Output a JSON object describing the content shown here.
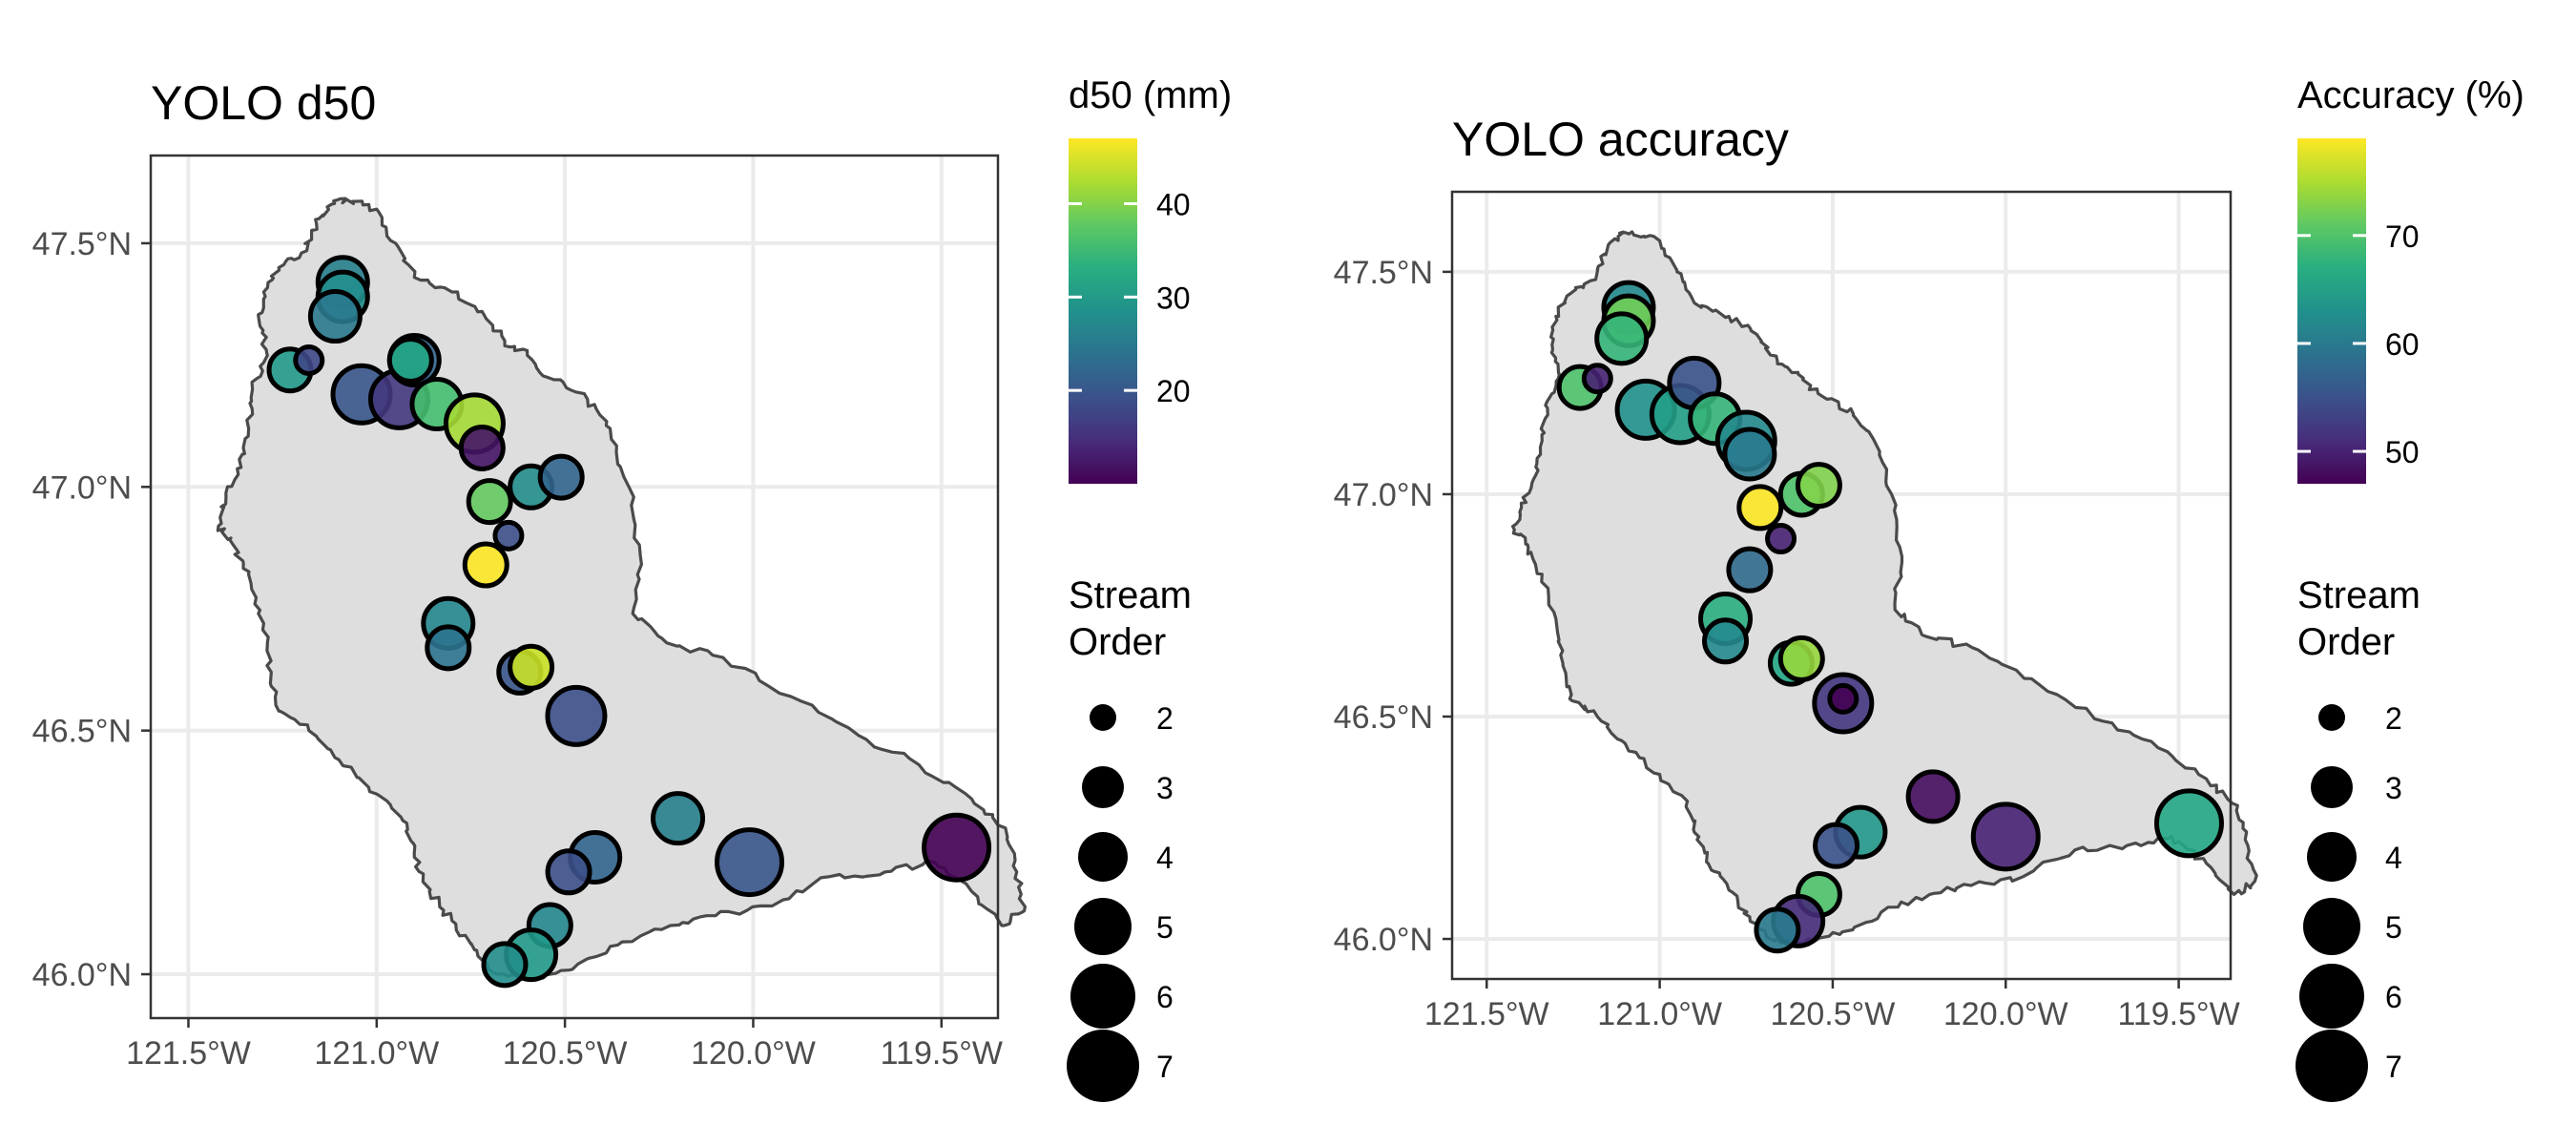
{
  "chart_data": [
    {
      "type": "scatter",
      "title": "YOLO d50",
      "x_axis": {
        "ticks": [
          -121.5,
          -121.0,
          -120.5,
          -120.0,
          -119.5
        ],
        "tick_labels": [
          "121.5°W",
          "121.0°W",
          "120.5°W",
          "120.0°W",
          "119.5°W"
        ]
      },
      "y_axis": {
        "ticks": [
          46.0,
          46.5,
          47.0,
          47.5
        ],
        "tick_labels": [
          "46.0°N",
          "46.5°N",
          "47.0°N",
          "47.5°N"
        ]
      },
      "xlim": [
        -121.55,
        -120.42
      ],
      "ylim": [
        45.91,
        47.68
      ],
      "color_legend": {
        "title": "d50 (mm)",
        "ticks": [
          20,
          30,
          40
        ],
        "range": [
          10,
          47
        ],
        "palette": "viridis"
      },
      "size_legend": {
        "title": [
          "Stream",
          "Order"
        ],
        "values": [
          2,
          3,
          4,
          5,
          6,
          7
        ]
      },
      "points": [
        {
          "lon": -121.09,
          "lat": 47.42,
          "order": 4,
          "value": 26
        },
        {
          "lon": -121.09,
          "lat": 47.39,
          "order": 4,
          "value": 28
        },
        {
          "lon": -121.11,
          "lat": 47.35,
          "order": 4,
          "value": 25
        },
        {
          "lon": -121.23,
          "lat": 47.24,
          "order": 3,
          "value": 30
        },
        {
          "lon": -121.18,
          "lat": 47.26,
          "order": 2,
          "value": 18
        },
        {
          "lon": -121.04,
          "lat": 47.19,
          "order": 5,
          "value": 20
        },
        {
          "lon": -120.94,
          "lat": 47.18,
          "order": 5,
          "value": 16
        },
        {
          "lon": -120.9,
          "lat": 47.26,
          "order": 4,
          "value": 22
        },
        {
          "lon": -120.91,
          "lat": 47.26,
          "order": 3,
          "value": 32
        },
        {
          "lon": -120.84,
          "lat": 47.17,
          "order": 4,
          "value": 36
        },
        {
          "lon": -120.74,
          "lat": 47.13,
          "order": 5,
          "value": 42
        },
        {
          "lon": -120.72,
          "lat": 47.08,
          "order": 3,
          "value": 12
        },
        {
          "lon": -120.7,
          "lat": 46.97,
          "order": 3,
          "value": 38
        },
        {
          "lon": -120.59,
          "lat": 47.0,
          "order": 3,
          "value": 28
        },
        {
          "lon": -120.51,
          "lat": 47.02,
          "order": 3,
          "value": 22
        },
        {
          "lon": -120.65,
          "lat": 46.9,
          "order": 2,
          "value": 19
        },
        {
          "lon": -120.71,
          "lat": 46.84,
          "order": 3,
          "value": 47
        },
        {
          "lon": -120.81,
          "lat": 46.72,
          "order": 4,
          "value": 27
        },
        {
          "lon": -120.81,
          "lat": 46.67,
          "order": 3,
          "value": 24
        },
        {
          "lon": -120.62,
          "lat": 46.62,
          "order": 3,
          "value": 20
        },
        {
          "lon": -120.59,
          "lat": 46.63,
          "order": 3,
          "value": 44
        },
        {
          "lon": -120.47,
          "lat": 46.53,
          "order": 5,
          "value": 19
        },
        {
          "lon": -120.2,
          "lat": 46.32,
          "order": 4,
          "value": 26
        },
        {
          "lon": -120.42,
          "lat": 46.24,
          "order": 4,
          "value": 22
        },
        {
          "lon": -120.49,
          "lat": 46.21,
          "order": 3,
          "value": 19
        },
        {
          "lon": -120.01,
          "lat": 46.23,
          "order": 6,
          "value": 20
        },
        {
          "lon": -119.46,
          "lat": 46.26,
          "order": 6,
          "value": 10
        },
        {
          "lon": -120.54,
          "lat": 46.1,
          "order": 3,
          "value": 27
        },
        {
          "lon": -120.59,
          "lat": 46.04,
          "order": 4,
          "value": 30
        },
        {
          "lon": -120.66,
          "lat": 46.02,
          "order": 3,
          "value": 28
        }
      ]
    },
    {
      "type": "scatter",
      "title": "YOLO accuracy",
      "x_axis": {
        "ticks": [
          -121.5,
          -121.0,
          -120.5,
          -120.0,
          -119.5
        ],
        "tick_labels": [
          "121.5°W",
          "121.0°W",
          "120.5°W",
          "120.0°W",
          "119.5°W"
        ]
      },
      "y_axis": {
        "ticks": [
          46.0,
          46.5,
          47.0,
          47.5
        ],
        "tick_labels": [
          "46.0°N",
          "46.5°N",
          "47.0°N",
          "47.5°N"
        ]
      },
      "color_legend": {
        "title": "Accuracy (%)",
        "ticks": [
          50,
          60,
          70
        ],
        "range": [
          47,
          79
        ],
        "palette": "viridis"
      },
      "size_legend": {
        "title": [
          "Stream",
          "Order"
        ],
        "values": [
          2,
          3,
          4,
          5,
          6,
          7
        ]
      },
      "points": [
        {
          "lon": -121.09,
          "lat": 47.42,
          "order": 4,
          "value": 62
        },
        {
          "lon": -121.09,
          "lat": 47.39,
          "order": 4,
          "value": 72
        },
        {
          "lon": -121.11,
          "lat": 47.35,
          "order": 4,
          "value": 68
        },
        {
          "lon": -121.23,
          "lat": 47.24,
          "order": 3,
          "value": 70
        },
        {
          "lon": -121.18,
          "lat": 47.26,
          "order": 2,
          "value": 50
        },
        {
          "lon": -121.04,
          "lat": 47.19,
          "order": 5,
          "value": 63
        },
        {
          "lon": -120.94,
          "lat": 47.18,
          "order": 5,
          "value": 65
        },
        {
          "lon": -120.9,
          "lat": 47.25,
          "order": 4,
          "value": 55
        },
        {
          "lon": -120.84,
          "lat": 47.17,
          "order": 4,
          "value": 68
        },
        {
          "lon": -120.75,
          "lat": 47.12,
          "order": 5,
          "value": 62
        },
        {
          "lon": -120.74,
          "lat": 47.09,
          "order": 4,
          "value": 60
        },
        {
          "lon": -120.71,
          "lat": 46.97,
          "order": 3,
          "value": 79
        },
        {
          "lon": -120.59,
          "lat": 47.0,
          "order": 3,
          "value": 70
        },
        {
          "lon": -120.54,
          "lat": 47.02,
          "order": 3,
          "value": 73
        },
        {
          "lon": -120.65,
          "lat": 46.9,
          "order": 2,
          "value": 50
        },
        {
          "lon": -120.74,
          "lat": 46.83,
          "order": 3,
          "value": 58
        },
        {
          "lon": -120.81,
          "lat": 46.72,
          "order": 4,
          "value": 67
        },
        {
          "lon": -120.81,
          "lat": 46.67,
          "order": 3,
          "value": 62
        },
        {
          "lon": -120.62,
          "lat": 46.62,
          "order": 3,
          "value": 66
        },
        {
          "lon": -120.59,
          "lat": 46.63,
          "order": 3,
          "value": 74
        },
        {
          "lon": -120.47,
          "lat": 46.53,
          "order": 5,
          "value": 52
        },
        {
          "lon": -120.47,
          "lat": 46.54,
          "order": 2,
          "value": 47
        },
        {
          "lon": -120.21,
          "lat": 46.32,
          "order": 4,
          "value": 48
        },
        {
          "lon": -120.42,
          "lat": 46.24,
          "order": 4,
          "value": 64
        },
        {
          "lon": -120.49,
          "lat": 46.21,
          "order": 3,
          "value": 55
        },
        {
          "lon": -120.0,
          "lat": 46.23,
          "order": 6,
          "value": 50
        },
        {
          "lon": -119.47,
          "lat": 46.26,
          "order": 6,
          "value": 66
        },
        {
          "lon": -120.54,
          "lat": 46.1,
          "order": 3,
          "value": 70
        },
        {
          "lon": -120.6,
          "lat": 46.04,
          "order": 4,
          "value": 51
        },
        {
          "lon": -120.66,
          "lat": 46.02,
          "order": 3,
          "value": 60
        }
      ]
    }
  ]
}
